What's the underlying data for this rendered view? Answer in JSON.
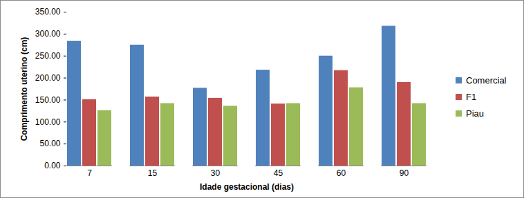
{
  "chart_data": {
    "type": "bar",
    "x_label": "Idade gestacional (dias)",
    "y_label": "Comprimento uterino (cm)",
    "categories": [
      "7",
      "15",
      "30",
      "45",
      "60",
      "90"
    ],
    "series": [
      {
        "name": "Comercial",
        "color": "#4f81bd",
        "values": [
          284,
          275,
          177,
          218,
          250,
          318
        ]
      },
      {
        "name": "F1",
        "color": "#c0504d",
        "values": [
          151,
          157,
          154,
          141,
          217,
          190
        ]
      },
      {
        "name": "Piau",
        "color": "#9bbb59",
        "values": [
          126,
          142,
          136,
          142,
          178,
          142
        ]
      }
    ],
    "ylim": [
      0,
      350
    ],
    "yticks": [
      {
        "value": 0,
        "label": "0.00"
      },
      {
        "value": 50,
        "label": "50.00"
      },
      {
        "value": 100,
        "label": "100.00"
      },
      {
        "value": 150,
        "label": "150.00"
      },
      {
        "value": 200,
        "label": "200.00"
      },
      {
        "value": 250,
        "label": "250.00"
      },
      {
        "value": 300,
        "label": "300.00"
      },
      {
        "value": 350,
        "label": "350.00"
      }
    ],
    "grid": false,
    "legend": "right"
  }
}
